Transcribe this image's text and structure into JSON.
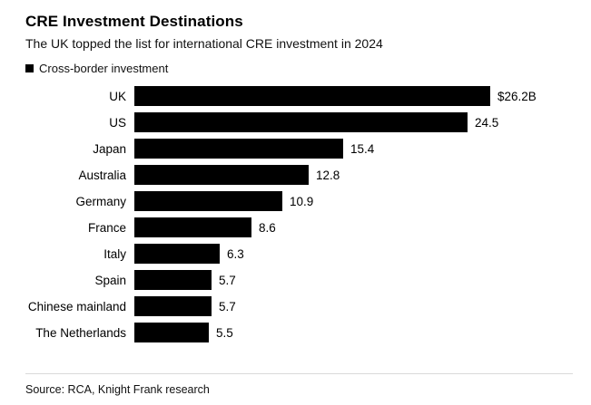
{
  "header": {
    "title": "CRE Investment Destinations",
    "subtitle": "The UK topped the list for international CRE investment in 2024",
    "legend": {
      "label": "Cross-border investment",
      "swatch_color": "#000000"
    }
  },
  "footer": {
    "source": "Source: RCA, Knight Frank research"
  },
  "chart_data": {
    "type": "bar",
    "orientation": "horizontal",
    "title": "CRE Investment Destinations",
    "subtitle": "The UK topped the list for international CRE investment in 2024",
    "series_name": "Cross-border investment",
    "categories": [
      "UK",
      "US",
      "Japan",
      "Australia",
      "Germany",
      "France",
      "Italy",
      "Spain",
      "Chinese mainland",
      "The Netherlands"
    ],
    "values": [
      26.2,
      24.5,
      15.4,
      12.8,
      10.9,
      8.6,
      6.3,
      5.7,
      5.7,
      5.5
    ],
    "value_labels": [
      "$26.2B",
      "24.5",
      "15.4",
      "12.8",
      "10.9",
      "8.6",
      "6.3",
      "5.7",
      "5.7",
      "5.5"
    ],
    "bar_color": "#000000",
    "xlim": [
      0,
      26.2
    ],
    "grid": false,
    "legend_position": "top-left",
    "value_labels_position": "end-of-bar"
  }
}
